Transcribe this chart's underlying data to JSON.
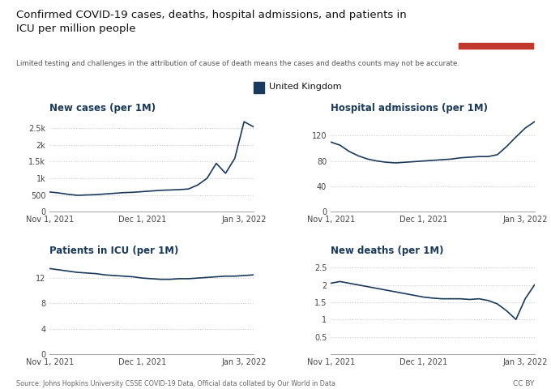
{
  "title": "Confirmed COVID-19 cases, deaths, hospital admissions, and patients in\nICU per million people",
  "subtitle": "Limited testing and challenges in the attribution of cause of death means the cases and deaths counts may not be accurate.",
  "legend_label": "United Kingdom",
  "legend_color": "#1a3a5c",
  "line_color": "#1a3a5c",
  "background_color": "#ffffff",
  "grid_color": "#cccccc",
  "source_text": "Source: Johns Hopkins University CSSE COVID-19 Data, Official data collated by Our World in Data",
  "cc_text": "CC BY",
  "owid_box_bg": "#1a3a5c",
  "owid_box_red": "#c0392b",
  "new_cases": {
    "title": "New cases (per 1M)",
    "x": [
      0,
      3,
      6,
      9,
      12,
      15,
      18,
      21,
      24,
      27,
      30,
      33,
      36,
      39,
      42,
      45,
      48,
      51,
      54,
      57,
      60,
      63,
      66
    ],
    "y": [
      590,
      560,
      520,
      490,
      500,
      510,
      530,
      550,
      570,
      580,
      600,
      620,
      640,
      650,
      660,
      680,
      800,
      1000,
      1450,
      1150,
      1600,
      2700,
      2550
    ],
    "yticks": [
      0,
      500,
      1000,
      1500,
      2000,
      2500
    ],
    "yticklabels": [
      "0",
      "500",
      "1k",
      "1.5k",
      "2k",
      "2.5k"
    ],
    "ylim": [
      0,
      2850
    ],
    "xtick_positions": [
      0,
      30,
      63
    ],
    "xtick_labels": [
      "Nov 1, 2021",
      "Dec 1, 2021",
      "Jan 3, 2022"
    ]
  },
  "hospital_admissions": {
    "title": "Hospital admissions (per 1M)",
    "x": [
      0,
      3,
      6,
      9,
      12,
      15,
      18,
      21,
      24,
      27,
      30,
      33,
      36,
      39,
      42,
      45,
      48,
      51,
      54,
      57,
      60,
      63,
      66
    ],
    "y": [
      110,
      105,
      95,
      88,
      83,
      80,
      78,
      77,
      78,
      79,
      80,
      81,
      82,
      83,
      85,
      86,
      87,
      87,
      90,
      103,
      118,
      132,
      142
    ],
    "yticks": [
      0,
      40,
      80,
      120
    ],
    "yticklabels": [
      "0",
      "40",
      "80",
      "120"
    ],
    "ylim": [
      0,
      150
    ],
    "xtick_positions": [
      0,
      30,
      63
    ],
    "xtick_labels": [
      "Nov 1, 2021",
      "Dec 1, 2021",
      "Jan 3, 2022"
    ]
  },
  "icu_patients": {
    "title": "Patients in ICU (per 1M)",
    "x": [
      0,
      3,
      6,
      9,
      12,
      15,
      18,
      21,
      24,
      27,
      30,
      33,
      36,
      39,
      42,
      45,
      48,
      51,
      54,
      57,
      60,
      63,
      66
    ],
    "y": [
      13.5,
      13.3,
      13.1,
      12.9,
      12.8,
      12.7,
      12.5,
      12.4,
      12.3,
      12.2,
      12.0,
      11.9,
      11.8,
      11.8,
      11.9,
      11.9,
      12.0,
      12.1,
      12.2,
      12.3,
      12.3,
      12.4,
      12.5
    ],
    "yticks": [
      0,
      4,
      8,
      12
    ],
    "yticklabels": [
      "0",
      "4",
      "8",
      "12"
    ],
    "ylim": [
      0,
      15
    ],
    "xtick_positions": [
      0,
      30,
      63
    ],
    "xtick_labels": [
      "Nov 1, 2021",
      "Dec 1, 2021",
      "Jan 3, 2022"
    ]
  },
  "new_deaths": {
    "title": "New deaths (per 1M)",
    "x": [
      0,
      3,
      6,
      9,
      12,
      15,
      18,
      21,
      24,
      27,
      30,
      33,
      36,
      39,
      42,
      45,
      48,
      51,
      54,
      57,
      60,
      63,
      66
    ],
    "y": [
      2.05,
      2.1,
      2.05,
      2.0,
      1.95,
      1.9,
      1.85,
      1.8,
      1.75,
      1.7,
      1.65,
      1.62,
      1.6,
      1.6,
      1.6,
      1.58,
      1.6,
      1.55,
      1.45,
      1.25,
      1.0,
      1.6,
      2.0
    ],
    "yticks": [
      0.5,
      1.0,
      1.5,
      2.0,
      2.5
    ],
    "yticklabels": [
      "0.5",
      "1",
      "1.5",
      "2",
      "2.5"
    ],
    "ylim": [
      0,
      2.75
    ],
    "xtick_positions": [
      0,
      30,
      63
    ],
    "xtick_labels": [
      "Nov 1, 2021",
      "Dec 1, 2021",
      "Jan 3, 2022"
    ]
  }
}
